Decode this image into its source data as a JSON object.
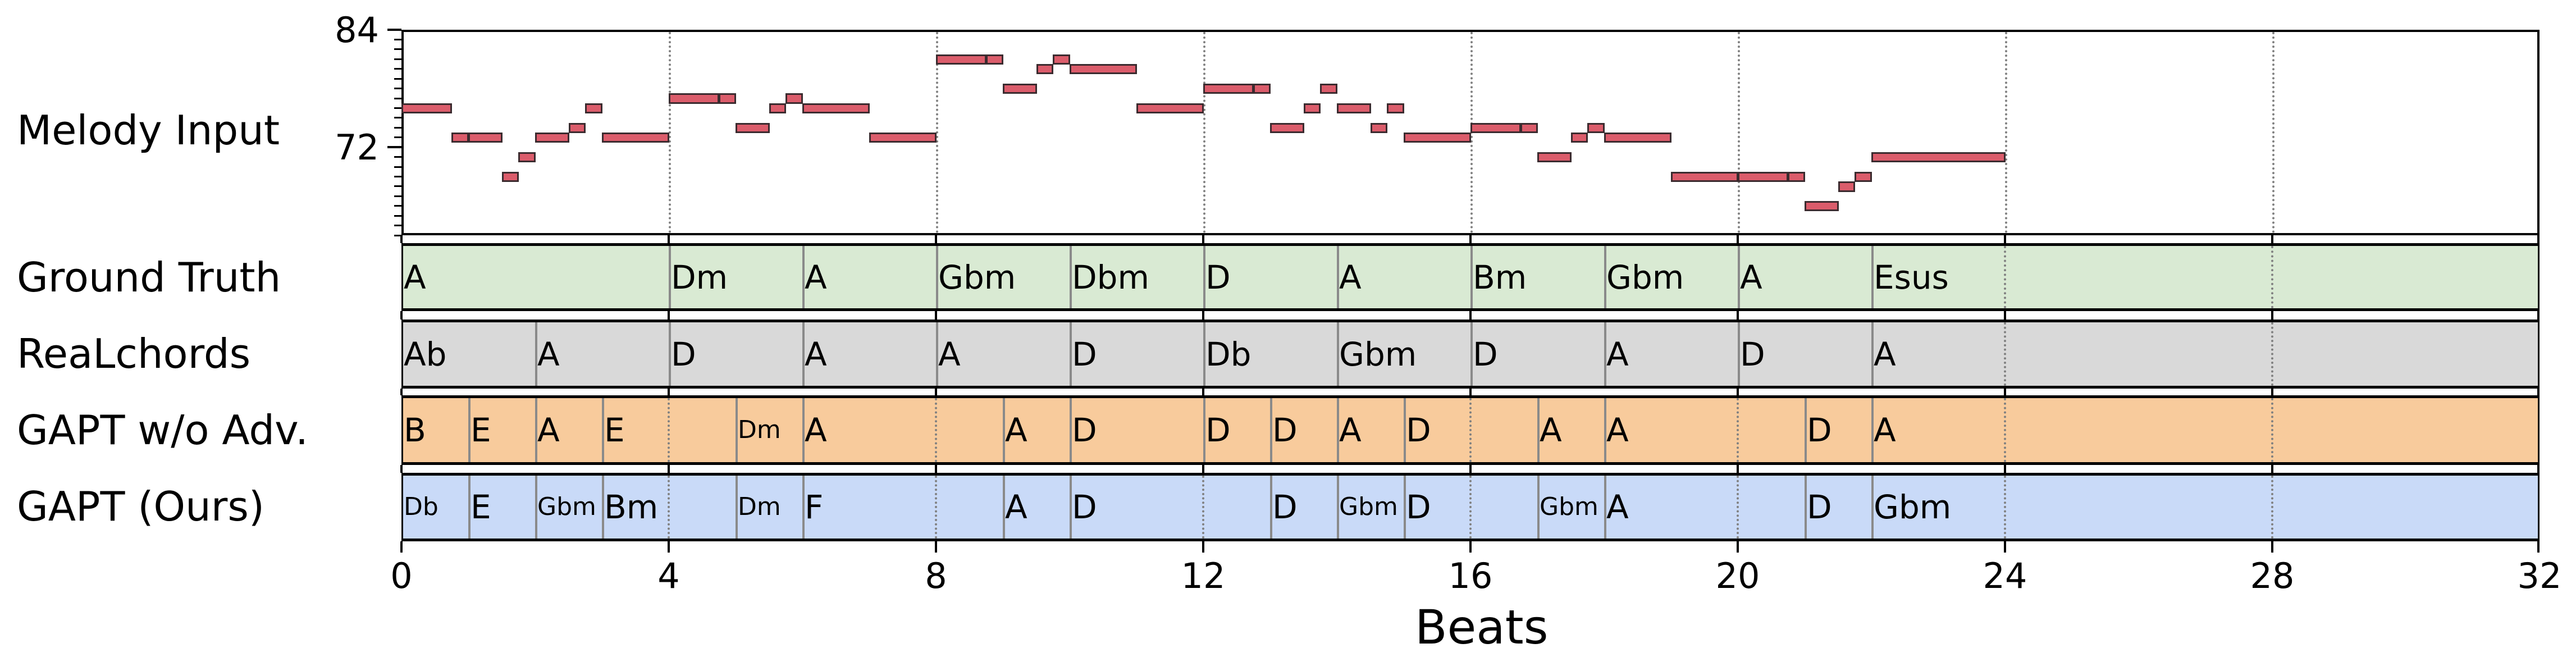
{
  "chart_data": {
    "type": "piano-roll-with-chord-rows",
    "xlabel": "Beats",
    "xlim": [
      0,
      32
    ],
    "xticks": [
      0,
      4,
      8,
      12,
      16,
      20,
      24,
      28,
      32
    ],
    "xtick_labels": [
      "0",
      "4",
      "8",
      "12",
      "16",
      "20",
      "24",
      "28",
      "32"
    ],
    "vertical_gridlines_every_beats": 4,
    "melody": {
      "label": "Melody Input",
      "ylabel": "",
      "ylim": [
        63,
        84
      ],
      "yticks": [
        72,
        84
      ],
      "ytick_labels": [
        "72",
        "84"
      ],
      "minor_ytick_step": 1,
      "color": "#db5c6b",
      "edge_color": "#3b2b2f",
      "notes": [
        {
          "start": 0.0,
          "end": 0.75,
          "pitch": 76
        },
        {
          "start": 0.75,
          "end": 1.0,
          "pitch": 73
        },
        {
          "start": 1.0,
          "end": 1.5,
          "pitch": 73
        },
        {
          "start": 1.5,
          "end": 1.75,
          "pitch": 69
        },
        {
          "start": 1.75,
          "end": 2.0,
          "pitch": 71
        },
        {
          "start": 2.0,
          "end": 2.5,
          "pitch": 73
        },
        {
          "start": 2.5,
          "end": 2.75,
          "pitch": 74
        },
        {
          "start": 2.75,
          "end": 3.0,
          "pitch": 76
        },
        {
          "start": 3.0,
          "end": 4.0,
          "pitch": 73
        },
        {
          "start": 4.0,
          "end": 4.75,
          "pitch": 77
        },
        {
          "start": 4.75,
          "end": 5.0,
          "pitch": 77
        },
        {
          "start": 5.0,
          "end": 5.5,
          "pitch": 74
        },
        {
          "start": 5.5,
          "end": 5.75,
          "pitch": 76
        },
        {
          "start": 5.75,
          "end": 6.0,
          "pitch": 77
        },
        {
          "start": 6.0,
          "end": 7.0,
          "pitch": 76
        },
        {
          "start": 7.0,
          "end": 8.0,
          "pitch": 73
        },
        {
          "start": 8.0,
          "end": 8.75,
          "pitch": 81
        },
        {
          "start": 8.75,
          "end": 9.0,
          "pitch": 81
        },
        {
          "start": 9.0,
          "end": 9.5,
          "pitch": 78
        },
        {
          "start": 9.5,
          "end": 9.75,
          "pitch": 80
        },
        {
          "start": 9.75,
          "end": 10.0,
          "pitch": 81
        },
        {
          "start": 10.0,
          "end": 11.0,
          "pitch": 80
        },
        {
          "start": 11.0,
          "end": 12.0,
          "pitch": 76
        },
        {
          "start": 12.0,
          "end": 12.75,
          "pitch": 78
        },
        {
          "start": 12.75,
          "end": 13.0,
          "pitch": 78
        },
        {
          "start": 13.0,
          "end": 13.5,
          "pitch": 74
        },
        {
          "start": 13.5,
          "end": 13.75,
          "pitch": 76
        },
        {
          "start": 13.75,
          "end": 14.0,
          "pitch": 78
        },
        {
          "start": 14.0,
          "end": 14.5,
          "pitch": 76
        },
        {
          "start": 14.5,
          "end": 14.75,
          "pitch": 74
        },
        {
          "start": 14.75,
          "end": 15.0,
          "pitch": 76
        },
        {
          "start": 15.0,
          "end": 16.0,
          "pitch": 73
        },
        {
          "start": 16.0,
          "end": 16.75,
          "pitch": 74
        },
        {
          "start": 16.75,
          "end": 17.0,
          "pitch": 74
        },
        {
          "start": 17.0,
          "end": 17.5,
          "pitch": 71
        },
        {
          "start": 17.5,
          "end": 17.75,
          "pitch": 73
        },
        {
          "start": 17.75,
          "end": 18.0,
          "pitch": 74
        },
        {
          "start": 18.0,
          "end": 19.0,
          "pitch": 73
        },
        {
          "start": 19.0,
          "end": 20.0,
          "pitch": 69
        },
        {
          "start": 20.0,
          "end": 20.75,
          "pitch": 69
        },
        {
          "start": 20.75,
          "end": 21.0,
          "pitch": 69
        },
        {
          "start": 21.0,
          "end": 21.5,
          "pitch": 66
        },
        {
          "start": 21.5,
          "end": 21.75,
          "pitch": 68
        },
        {
          "start": 21.75,
          "end": 22.0,
          "pitch": 69
        },
        {
          "start": 22.0,
          "end": 24.0,
          "pitch": 71
        }
      ]
    },
    "chord_rows": [
      {
        "label": "Ground Truth",
        "color": "#d9ead3",
        "chords": [
          {
            "start": 0,
            "end": 4,
            "name": "A"
          },
          {
            "start": 4,
            "end": 6,
            "name": "Dm"
          },
          {
            "start": 6,
            "end": 8,
            "name": "A"
          },
          {
            "start": 8,
            "end": 10,
            "name": "Gbm"
          },
          {
            "start": 10,
            "end": 12,
            "name": "Dbm"
          },
          {
            "start": 12,
            "end": 14,
            "name": "D"
          },
          {
            "start": 14,
            "end": 16,
            "name": "A"
          },
          {
            "start": 16,
            "end": 18,
            "name": "Bm"
          },
          {
            "start": 18,
            "end": 20,
            "name": "Gbm"
          },
          {
            "start": 20,
            "end": 22,
            "name": "A"
          },
          {
            "start": 22,
            "end": 32,
            "name": "Esus"
          }
        ]
      },
      {
        "label": "ReaLchords",
        "color": "#d9d9d9",
        "chords": [
          {
            "start": 0,
            "end": 2,
            "name": "Ab"
          },
          {
            "start": 2,
            "end": 4,
            "name": "A"
          },
          {
            "start": 4,
            "end": 6,
            "name": "D"
          },
          {
            "start": 6,
            "end": 8,
            "name": "A"
          },
          {
            "start": 8,
            "end": 10,
            "name": "A"
          },
          {
            "start": 10,
            "end": 12,
            "name": "D"
          },
          {
            "start": 12,
            "end": 14,
            "name": "Db"
          },
          {
            "start": 14,
            "end": 16,
            "name": "Gbm"
          },
          {
            "start": 16,
            "end": 18,
            "name": "D"
          },
          {
            "start": 18,
            "end": 20,
            "name": "A"
          },
          {
            "start": 20,
            "end": 22,
            "name": "D"
          },
          {
            "start": 22,
            "end": 32,
            "name": "A"
          }
        ]
      },
      {
        "label": "GAPT w/o Adv.",
        "color": "#f8cb9c",
        "chords": [
          {
            "start": 0,
            "end": 1,
            "name": "B"
          },
          {
            "start": 1,
            "end": 2,
            "name": "E"
          },
          {
            "start": 2,
            "end": 3,
            "name": "A"
          },
          {
            "start": 3,
            "end": 5,
            "name": "E"
          },
          {
            "start": 5,
            "end": 6,
            "name": "Dm"
          },
          {
            "start": 6,
            "end": 9,
            "name": "A"
          },
          {
            "start": 9,
            "end": 10,
            "name": "A"
          },
          {
            "start": 10,
            "end": 12,
            "name": "D"
          },
          {
            "start": 12,
            "end": 13,
            "name": "D"
          },
          {
            "start": 13,
            "end": 14,
            "name": "D"
          },
          {
            "start": 14,
            "end": 15,
            "name": "A"
          },
          {
            "start": 15,
            "end": 17,
            "name": "D"
          },
          {
            "start": 17,
            "end": 18,
            "name": "A"
          },
          {
            "start": 18,
            "end": 21,
            "name": "A"
          },
          {
            "start": 21,
            "end": 22,
            "name": "D"
          },
          {
            "start": 22,
            "end": 32,
            "name": "A"
          }
        ]
      },
      {
        "label": "GAPT (Ours)",
        "color": "#c9daf8",
        "chords": [
          {
            "start": 0,
            "end": 1,
            "name": "Db"
          },
          {
            "start": 1,
            "end": 2,
            "name": "E"
          },
          {
            "start": 2,
            "end": 3,
            "name": "Gbm"
          },
          {
            "start": 3,
            "end": 5,
            "name": "Bm"
          },
          {
            "start": 5,
            "end": 6,
            "name": "Dm"
          },
          {
            "start": 6,
            "end": 9,
            "name": "F"
          },
          {
            "start": 9,
            "end": 10,
            "name": "A"
          },
          {
            "start": 10,
            "end": 13,
            "name": "D"
          },
          {
            "start": 13,
            "end": 14,
            "name": "D"
          },
          {
            "start": 14,
            "end": 15,
            "name": "Gbm"
          },
          {
            "start": 15,
            "end": 17,
            "name": "D"
          },
          {
            "start": 17,
            "end": 18,
            "name": "Gbm"
          },
          {
            "start": 18,
            "end": 21,
            "name": "A"
          },
          {
            "start": 21,
            "end": 22,
            "name": "D"
          },
          {
            "start": 22,
            "end": 32,
            "name": "Gbm"
          }
        ]
      }
    ]
  },
  "labels": {
    "melody": "Melody Input",
    "rows": [
      "Ground Truth",
      "ReaLchords",
      "GAPT w/o Adv.",
      "GAPT (Ours)"
    ],
    "xlabel": "Beats"
  }
}
